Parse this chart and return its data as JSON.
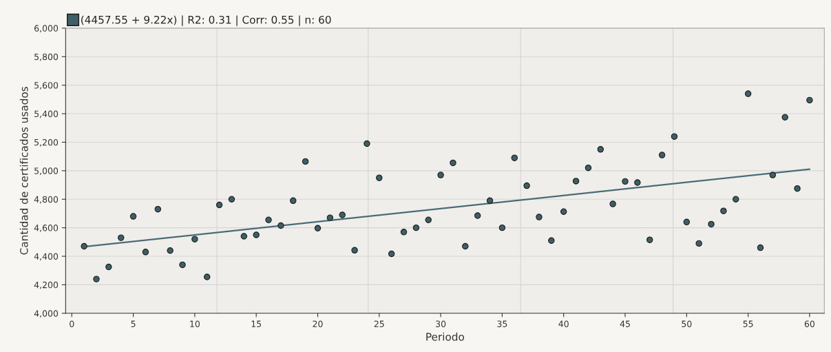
{
  "chart_data": {
    "type": "scatter",
    "xlabel": "Periodo",
    "ylabel": "Cantidad de certificados usados",
    "x": [
      1,
      2,
      3,
      4,
      5,
      6,
      7,
      8,
      9,
      10,
      11,
      12,
      13,
      14,
      15,
      16,
      17,
      18,
      19,
      20,
      21,
      22,
      23,
      24,
      25,
      26,
      27,
      28,
      29,
      30,
      31,
      32,
      33,
      34,
      35,
      36,
      37,
      38,
      39,
      40,
      41,
      42,
      43,
      44,
      45,
      46,
      47,
      48,
      49,
      50,
      51,
      52,
      53,
      54,
      55,
      56,
      57,
      58,
      59,
      60
    ],
    "series": [
      {
        "name": "(4457.55 + 9.22x) | R2: 0.31 | Corr: 0.55 | n: 60",
        "color": "#3f5f66",
        "marker": "circle",
        "values": [
          4470,
          4240,
          4325,
          4530,
          4680,
          4430,
          4730,
          4440,
          4340,
          4520,
          4255,
          4760,
          4800,
          4540,
          4550,
          4655,
          4615,
          4790,
          5065,
          4597,
          4670,
          4690,
          4442,
          5190,
          4950,
          4417,
          4570,
          4600,
          4655,
          4970,
          5055,
          4470,
          4685,
          4790,
          4600,
          5090,
          4895,
          4675,
          4510,
          4713,
          4927,
          5020,
          5150,
          4767,
          4925,
          4917,
          4515,
          5110,
          5240,
          4640,
          4490,
          4625,
          4718,
          4800,
          5540,
          4460,
          4970,
          5375,
          4875,
          5495
        ]
      },
      {
        "type": "line",
        "color": "#4a6b75",
        "marker": "none",
        "line_style": "solid",
        "x": [
          1,
          60
        ],
        "values": [
          4467,
          5011
        ]
      }
    ],
    "xlim": [
      -0.5,
      61.2
    ],
    "ylim": [
      4000,
      6000
    ],
    "xticks": [
      0,
      5,
      10,
      15,
      20,
      25,
      30,
      35,
      40,
      45,
      50,
      55,
      60
    ],
    "yticks": [
      {
        "value": 4000,
        "label": "4,000"
      },
      {
        "value": 4200,
        "label": "4,200"
      },
      {
        "value": 4400,
        "label": "4,400"
      },
      {
        "value": 4600,
        "label": "4,600"
      },
      {
        "value": 4800,
        "label": "4,800"
      },
      {
        "value": 5000,
        "label": "5,000"
      },
      {
        "value": 5200,
        "label": "5,200"
      },
      {
        "value": 5400,
        "label": "5,400"
      },
      {
        "value": 5600,
        "label": "5,600"
      },
      {
        "value": 5800,
        "label": "5,800"
      },
      {
        "value": 6000,
        "label": "6,000"
      }
    ],
    "ref_lines": [
      {
        "axis": "x",
        "value": 11.8,
        "color": "#d6d6d6"
      },
      {
        "axis": "x",
        "value": 24.1,
        "color": "#d6d6d6"
      },
      {
        "axis": "x",
        "value": 36.5,
        "color": "#d6d6d6"
      },
      {
        "axis": "x",
        "value": 48.9,
        "color": "#d6d6d6"
      }
    ],
    "grid": "y",
    "legend": "top left"
  }
}
